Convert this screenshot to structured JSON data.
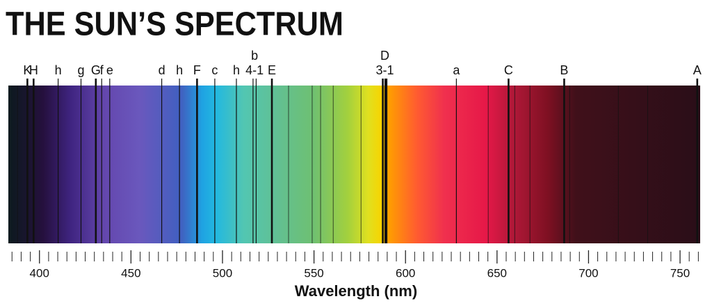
{
  "chart_data": {
    "type": "spectrum",
    "title": "THE SUN’S SPECTRUM",
    "xlabel": "Wavelength (nm)",
    "xlim": [
      383,
      761
    ],
    "xticks": [
      400,
      450,
      500,
      550,
      600,
      650,
      700,
      750
    ],
    "minor_xticks": [
      385,
      390,
      395,
      405,
      410,
      415,
      420,
      425,
      430,
      435,
      440,
      445,
      455,
      460,
      465,
      470,
      475,
      480,
      485,
      490,
      495,
      505,
      510,
      515,
      520,
      525,
      530,
      535,
      540,
      545,
      555,
      560,
      565,
      570,
      575,
      580,
      585,
      590,
      595,
      605,
      610,
      615,
      620,
      625,
      630,
      635,
      640,
      645,
      655,
      660,
      665,
      670,
      675,
      680,
      685,
      690,
      695,
      705,
      710,
      715,
      720,
      725,
      730,
      735,
      740,
      745,
      755,
      760
    ],
    "line_color": "#111111",
    "lines": [
      {
        "label": "K",
        "wavelengths": [
          393.4
        ],
        "weight": "thick"
      },
      {
        "label": "H",
        "wavelengths": [
          396.8
        ],
        "weight": "thick"
      },
      {
        "label": "h",
        "wavelengths": [
          410.2
        ],
        "weight": "thin"
      },
      {
        "label": "g",
        "wavelengths": [
          422.7
        ],
        "weight": "thin"
      },
      {
        "label": "G",
        "wavelengths": [
          430.8
        ],
        "weight": "thick"
      },
      {
        "label": "f",
        "wavelengths": [
          434.0
        ],
        "weight": "thin"
      },
      {
        "label": "e",
        "wavelengths": [
          438.4
        ],
        "weight": "thin"
      },
      {
        "label": "d",
        "wavelengths": [
          466.8
        ],
        "weight": "thin"
      },
      {
        "label": "h",
        "wavelengths": [
          476.5
        ],
        "weight": "thin"
      },
      {
        "label": "F",
        "wavelengths": [
          486.1
        ],
        "weight": "thick"
      },
      {
        "label": "c",
        "wavelengths": [
          495.8
        ],
        "weight": "thin"
      },
      {
        "label": "h",
        "wavelengths": [
          507.6
        ],
        "weight": "thin"
      },
      {
        "label": "b",
        "sublabel": "4-1",
        "wavelengths": [
          516.7,
          518.4
        ],
        "weight": "thin"
      },
      {
        "label": "E",
        "wavelengths": [
          527.0
        ],
        "weight": "thick"
      },
      {
        "label": "D",
        "sublabel": "3-1",
        "wavelengths": [
          587.6,
          589.0,
          589.6
        ],
        "weight": "thick"
      },
      {
        "label": "a",
        "wavelengths": [
          627.8
        ],
        "weight": "thin"
      },
      {
        "label": "C",
        "wavelengths": [
          656.3
        ],
        "weight": "thick"
      },
      {
        "label": "B",
        "wavelengths": [
          686.7
        ],
        "weight": "thick"
      },
      {
        "label": "A",
        "wavelengths": [
          759.4
        ],
        "weight": "thick"
      }
    ],
    "unlabeled_lines": [
      388.0,
      536.1,
      549.0,
      553.6,
      560.5,
      575.7,
      645.2,
      659.7,
      668.0,
      689.7,
      716.3,
      732.3
    ]
  }
}
